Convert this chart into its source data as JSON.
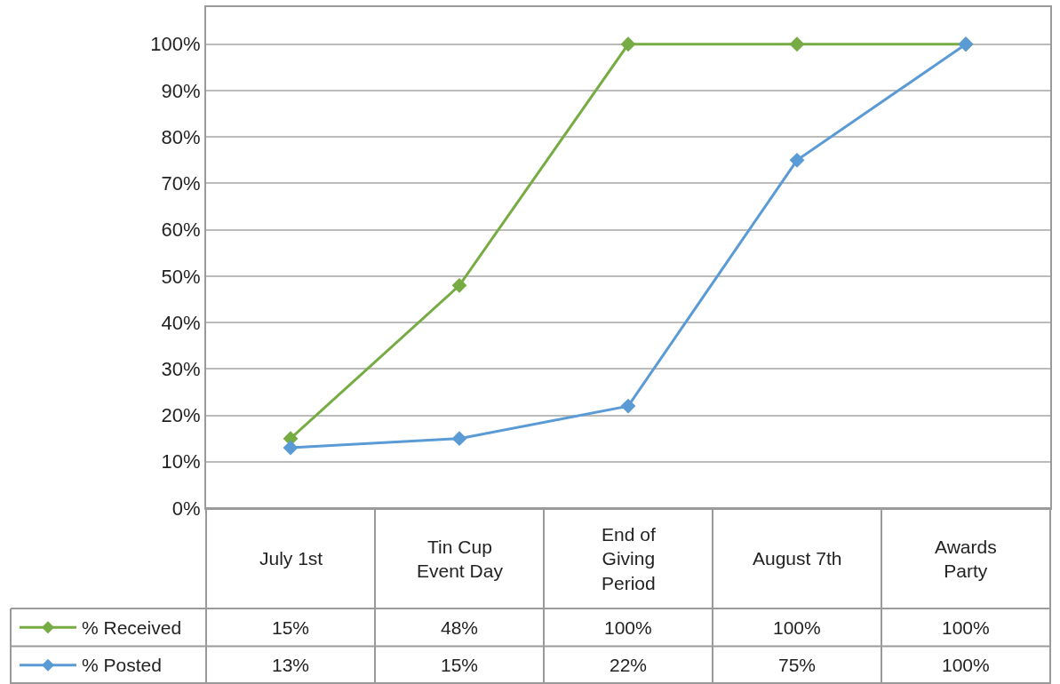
{
  "chart_data": {
    "type": "line",
    "categories": [
      "July 1st",
      "Tin Cup Event Day",
      "End of Giving Period",
      "August 7th",
      "Awards Party"
    ],
    "series": [
      {
        "name": "% Received",
        "color": "#77ab43",
        "values": [
          15,
          48,
          100,
          100,
          100
        ],
        "value_labels": [
          "15%",
          "48%",
          "100%",
          "100%",
          "100%"
        ]
      },
      {
        "name": "% Posted",
        "color": "#5b9bd5",
        "values": [
          13,
          15,
          22,
          75,
          100
        ],
        "value_labels": [
          "13%",
          "15%",
          "22%",
          "75%",
          "100%"
        ]
      }
    ],
    "ylim": [
      0,
      108
    ],
    "yticks": [
      {
        "value": 0,
        "label": "0%"
      },
      {
        "value": 10,
        "label": "10%"
      },
      {
        "value": 20,
        "label": "20%"
      },
      {
        "value": 30,
        "label": "30%"
      },
      {
        "value": 40,
        "label": "40%"
      },
      {
        "value": 50,
        "label": "50%"
      },
      {
        "value": 60,
        "label": "60%"
      },
      {
        "value": 70,
        "label": "70%"
      },
      {
        "value": 80,
        "label": "80%"
      },
      {
        "value": 90,
        "label": "90%"
      },
      {
        "value": 100,
        "label": "100%"
      }
    ],
    "grid": "y",
    "legend": "bottom left",
    "marker": "diamond",
    "line_style": "solid"
  }
}
